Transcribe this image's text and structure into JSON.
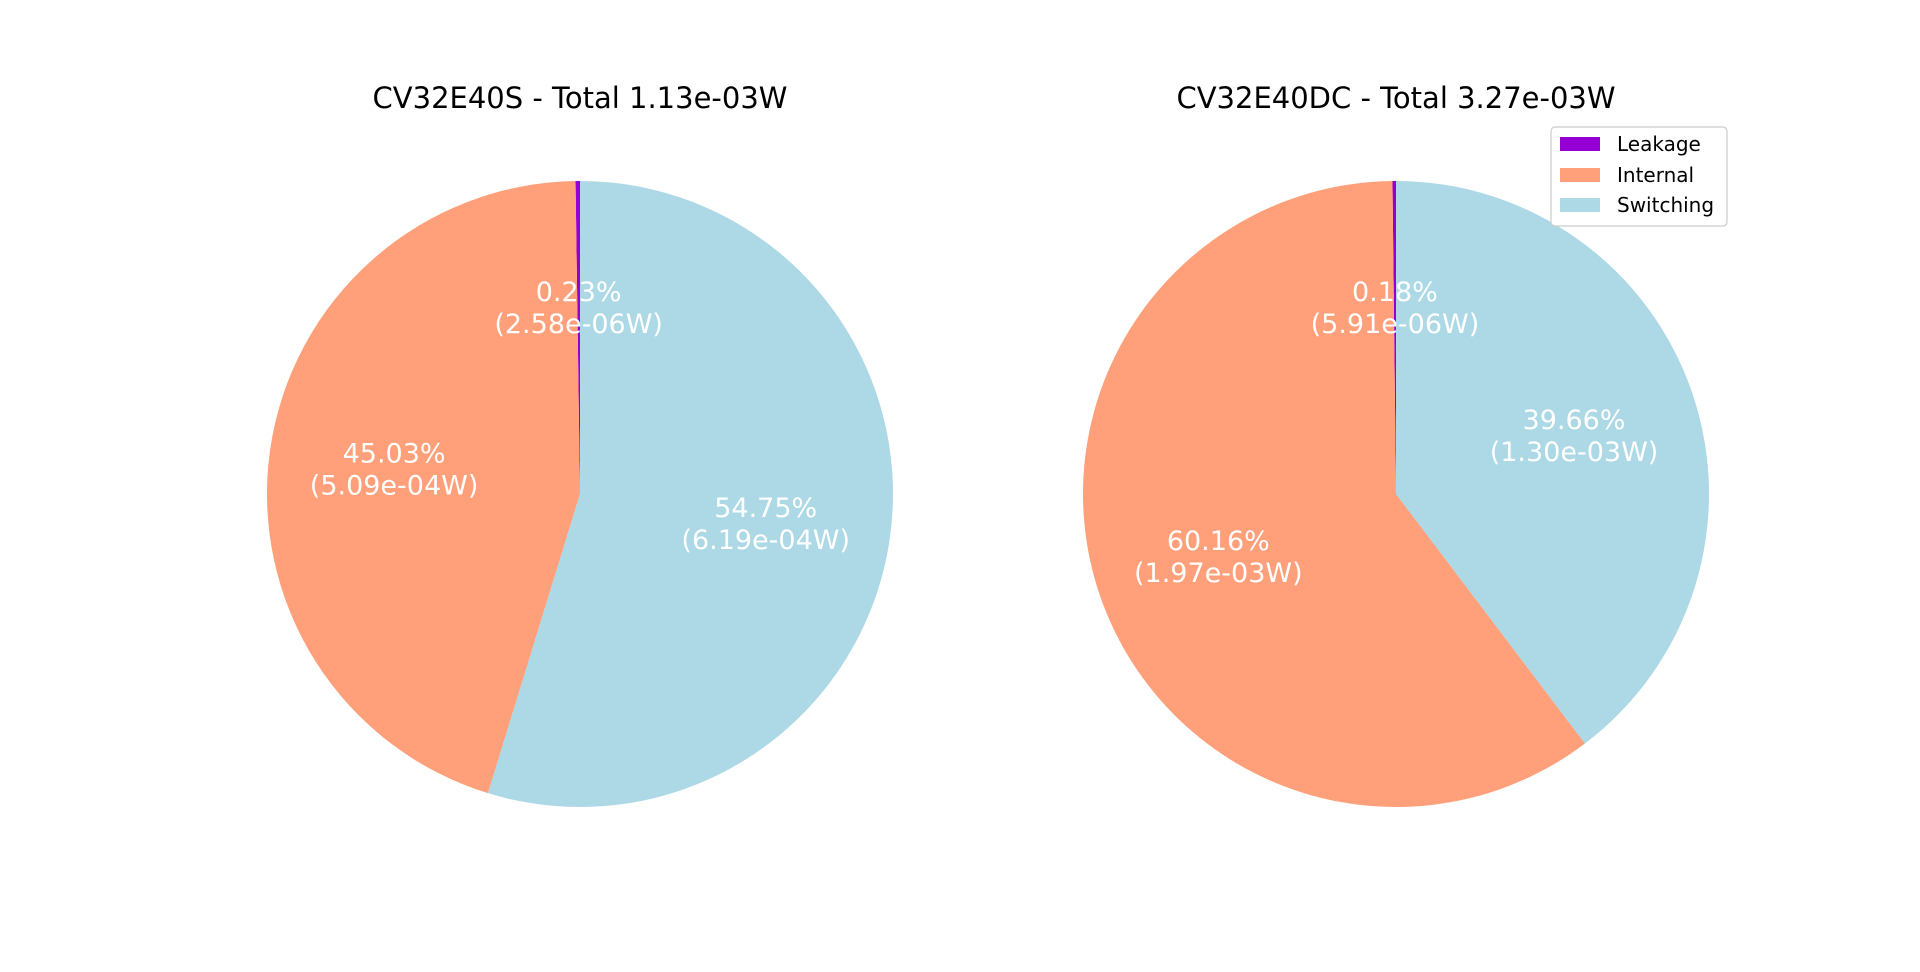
{
  "chart_data": [
    {
      "type": "pie",
      "title": "CV32E40S - Total 1.13e-03W",
      "slices": [
        {
          "category": "Leakage",
          "value": 2.58e-06,
          "percent": "0.23%",
          "watts": "(2.58e-06W)"
        },
        {
          "category": "Internal",
          "value": 0.000509,
          "percent": "45.03%",
          "watts": "(5.09e-04W)"
        },
        {
          "category": "Switching",
          "value": 0.000619,
          "percent": "54.75%",
          "watts": "(6.19e-04W)"
        }
      ]
    },
    {
      "type": "pie",
      "title": "CV32E40DC - Total 3.27e-03W",
      "slices": [
        {
          "category": "Leakage",
          "value": 5.91e-06,
          "percent": "0.18%",
          "watts": "(5.91e-06W)"
        },
        {
          "category": "Internal",
          "value": 0.00197,
          "percent": "60.16%",
          "watts": "(1.97e-03W)"
        },
        {
          "category": "Switching",
          "value": 0.0013,
          "percent": "39.66%",
          "watts": "(1.30e-03W)"
        }
      ]
    }
  ],
  "legend": {
    "placement": "top-right",
    "items": [
      {
        "label": "Leakage",
        "color": "#9400D3"
      },
      {
        "label": "Internal",
        "color": "#FFA07A"
      },
      {
        "label": "Switching",
        "color": "#ADD8E6"
      }
    ]
  },
  "colors": {
    "Leakage": "#9400D3",
    "Internal": "#FFA07A",
    "Switching": "#ADD8E6"
  }
}
